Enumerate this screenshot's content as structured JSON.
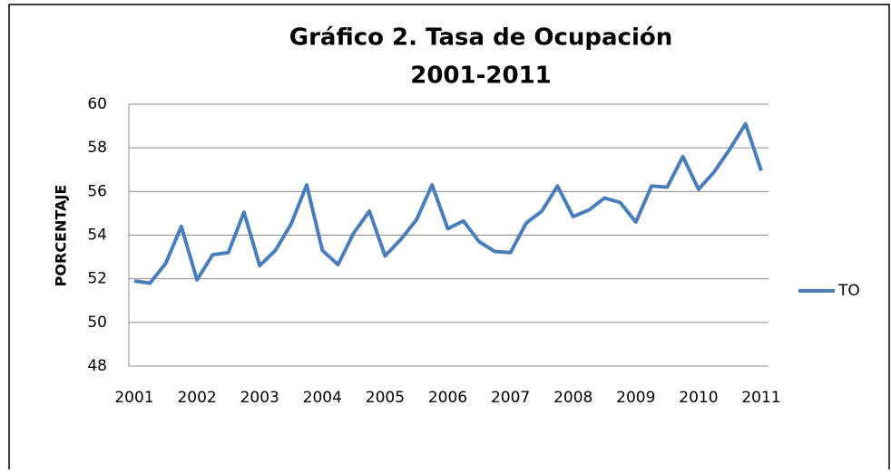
{
  "chart_data": {
    "type": "line",
    "title": "Gráfico 2. Tasa de Ocupación",
    "subtitle": "2001-2011",
    "y_label": "PORCENTAJE",
    "categories": [
      "2001",
      null,
      null,
      null,
      "2002",
      null,
      null,
      null,
      "2003",
      null,
      null,
      null,
      "2004",
      null,
      null,
      null,
      "2005",
      null,
      null,
      null,
      "2006",
      null,
      null,
      null,
      "2007",
      null,
      null,
      null,
      "2008",
      null,
      null,
      null,
      "2009",
      null,
      null,
      null,
      "2010",
      null,
      null,
      null,
      "2011"
    ],
    "series": [
      {
        "name": "TO",
        "color": "#4a7ebb",
        "values": [
          51.9,
          51.8,
          52.7,
          54.4,
          51.95,
          53.1,
          53.2,
          55.05,
          52.6,
          53.3,
          54.5,
          56.3,
          53.3,
          52.65,
          54.1,
          55.1,
          53.05,
          53.8,
          54.7,
          56.3,
          54.3,
          54.65,
          53.7,
          53.25,
          53.2,
          54.55,
          55.1,
          56.25,
          54.85,
          55.15,
          55.7,
          55.5,
          54.6,
          56.25,
          56.2,
          57.6,
          56.1,
          56.9,
          57.95,
          59.1,
          56.95
        ]
      }
    ],
    "ylim": [
      48,
      60
    ],
    "yticks": [
      48,
      50,
      52,
      54,
      56,
      58,
      60
    ],
    "grid": true,
    "legend": "right"
  }
}
